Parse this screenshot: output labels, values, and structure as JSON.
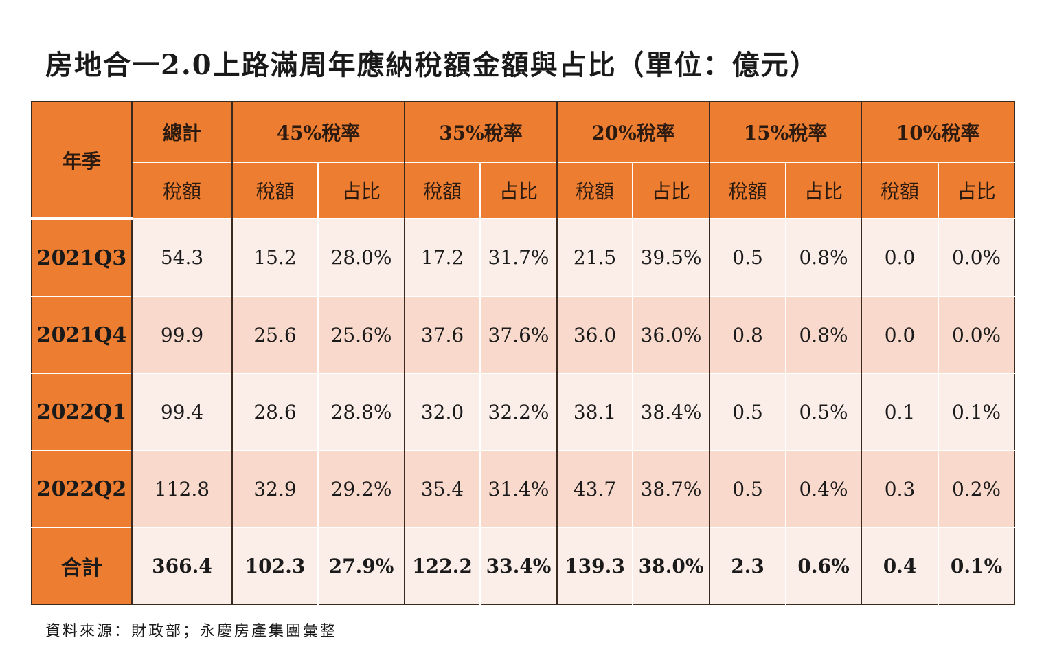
{
  "title": "房地合一2.0上路滿周年應納稅額金額與占比（單位：億元）",
  "source": "資料來源：財政部；永慶房產集團彙整",
  "colors": {
    "header": "#ED7D31",
    "row_light": "#FBEEE9",
    "row_dark": "#F8D9CC"
  },
  "chart_data": {
    "type": "table",
    "title": "房地合一2.0上路滿周年應納稅額金額與占比（單位：億元）",
    "row_header_label": "年季",
    "groups": [
      "總計",
      "45%稅率",
      "35%稅率",
      "20%稅率",
      "15%稅率",
      "10%稅率"
    ],
    "sub_headers": [
      "稅額",
      "稅額",
      "占比",
      "稅額",
      "占比",
      "稅額",
      "占比",
      "稅額",
      "占比",
      "稅額",
      "占比"
    ],
    "rows": [
      {
        "label": "2021Q3",
        "values": [
          "54.3",
          "15.2",
          "28.0%",
          "17.2",
          "31.7%",
          "21.5",
          "39.5%",
          "0.5",
          "0.8%",
          "0.0",
          "0.0%"
        ]
      },
      {
        "label": "2021Q4",
        "values": [
          "99.9",
          "25.6",
          "25.6%",
          "37.6",
          "37.6%",
          "36.0",
          "36.0%",
          "0.8",
          "0.8%",
          "0.0",
          "0.0%"
        ]
      },
      {
        "label": "2022Q1",
        "values": [
          "99.4",
          "28.6",
          "28.8%",
          "32.0",
          "32.2%",
          "38.1",
          "38.4%",
          "0.5",
          "0.5%",
          "0.1",
          "0.1%"
        ]
      },
      {
        "label": "2022Q2",
        "values": [
          "112.8",
          "32.9",
          "29.2%",
          "35.4",
          "31.4%",
          "43.7",
          "38.7%",
          "0.5",
          "0.4%",
          "0.3",
          "0.2%"
        ]
      },
      {
        "label": "合計",
        "values": [
          "366.4",
          "102.3",
          "27.9%",
          "122.2",
          "33.4%",
          "139.3",
          "38.0%",
          "2.3",
          "0.6%",
          "0.4",
          "0.1%"
        ]
      }
    ]
  }
}
